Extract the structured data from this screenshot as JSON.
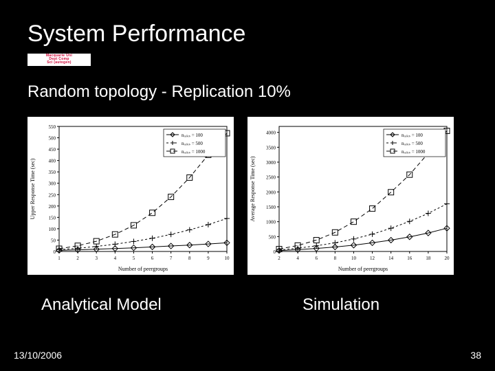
{
  "slide": {
    "title": "System Performance",
    "subtitle": "Random topology - Replication 10%",
    "footer_date": "13/10/2006",
    "page_number": "38",
    "badge_line1": "Macquarie Uni",
    "badge_line2": "Dept Comp",
    "badge_line3": "Sci (autogen)"
  },
  "colors": {
    "slide_bg": "#000000",
    "chart_bg": "#ffffff",
    "axis": "#000000",
    "grid": "#cccccc",
    "text": "#000000",
    "series_100": "#000000",
    "series_500": "#000000",
    "series_1000": "#000000"
  },
  "chart_left": {
    "type": "line",
    "title": "",
    "xlabel": "Number of peergroups",
    "ylabel": "Upper Response Time (sec)",
    "label_fontsize": 8,
    "tick_fontsize": 7,
    "xlim": [
      1,
      10
    ],
    "ylim": [
      0,
      550
    ],
    "xtick_step": 1,
    "ytick_step": 50,
    "yticks_labels": [
      0,
      50,
      100,
      150,
      200,
      250,
      300,
      350,
      400,
      450,
      500
    ],
    "grid": false,
    "line_width": 1,
    "marker_size": 4,
    "legend_pos": "top-right-inset",
    "series": [
      {
        "name_key": "n_rules_100",
        "label": "nᵣᵤₗₑₛ = 100",
        "marker": "diamond",
        "dash": "none",
        "color": "#000000",
        "x": [
          1,
          2,
          3,
          4,
          5,
          6,
          7,
          8,
          9,
          10
        ],
        "y": [
          5,
          7,
          10,
          13,
          16,
          20,
          24,
          28,
          33,
          38
        ]
      },
      {
        "name_key": "n_rules_500",
        "label": "nᵣᵤₗₑₛ = 500",
        "marker": "plus",
        "dash": "short",
        "color": "#000000",
        "x": [
          1,
          2,
          3,
          4,
          5,
          6,
          7,
          8,
          9,
          10
        ],
        "y": [
          8,
          14,
          22,
          32,
          44,
          58,
          75,
          95,
          118,
          145
        ]
      },
      {
        "name_key": "n_rules_1000",
        "label": "nᵣᵤₗₑₛ = 1000",
        "marker": "square",
        "dash": "long",
        "color": "#000000",
        "x": [
          1,
          2,
          3,
          4,
          5,
          6,
          7,
          8,
          9,
          10
        ],
        "y": [
          12,
          25,
          45,
          75,
          115,
          170,
          240,
          325,
          425,
          520
        ]
      }
    ]
  },
  "chart_right": {
    "type": "line",
    "title": "",
    "xlabel": "Number of peergroups",
    "ylabel": "Average Response Time (sec)",
    "label_fontsize": 8,
    "tick_fontsize": 7,
    "xlim": [
      2,
      20
    ],
    "ylim": [
      0,
      4200
    ],
    "xtick_step": 2,
    "ytick_step": 500,
    "yticks_labels": [
      0,
      500,
      1000,
      1500,
      2000,
      2500,
      3000,
      3500,
      4000
    ],
    "grid": false,
    "line_width": 1,
    "marker_size": 4,
    "legend_pos": "top-right-inset",
    "series": [
      {
        "name_key": "n_rules_100",
        "label": "nᵣᵤₗₑₛ = 100",
        "marker": "diamond",
        "dash": "none",
        "color": "#000000",
        "x": [
          2,
          4,
          6,
          8,
          10,
          12,
          14,
          16,
          18,
          20
        ],
        "y": [
          30,
          60,
          100,
          150,
          210,
          290,
          380,
          490,
          620,
          780
        ]
      },
      {
        "name_key": "n_rules_500",
        "label": "nᵣᵤₗₑₛ = 500",
        "marker": "plus",
        "dash": "short",
        "color": "#000000",
        "x": [
          2,
          4,
          6,
          8,
          10,
          12,
          14,
          16,
          18,
          20
        ],
        "y": [
          50,
          110,
          190,
          290,
          420,
          580,
          780,
          1010,
          1280,
          1600
        ]
      },
      {
        "name_key": "n_rules_1000",
        "label": "nᵣᵤₗₑₛ = 1000",
        "marker": "square",
        "dash": "long",
        "color": "#000000",
        "x": [
          2,
          4,
          6,
          8,
          10,
          12,
          14,
          16,
          18,
          20
        ],
        "y": [
          80,
          200,
          380,
          640,
          1000,
          1440,
          1990,
          2580,
          3300,
          4050
        ]
      }
    ]
  },
  "captions": {
    "left": "Analytical Model",
    "right": "Simulation"
  }
}
